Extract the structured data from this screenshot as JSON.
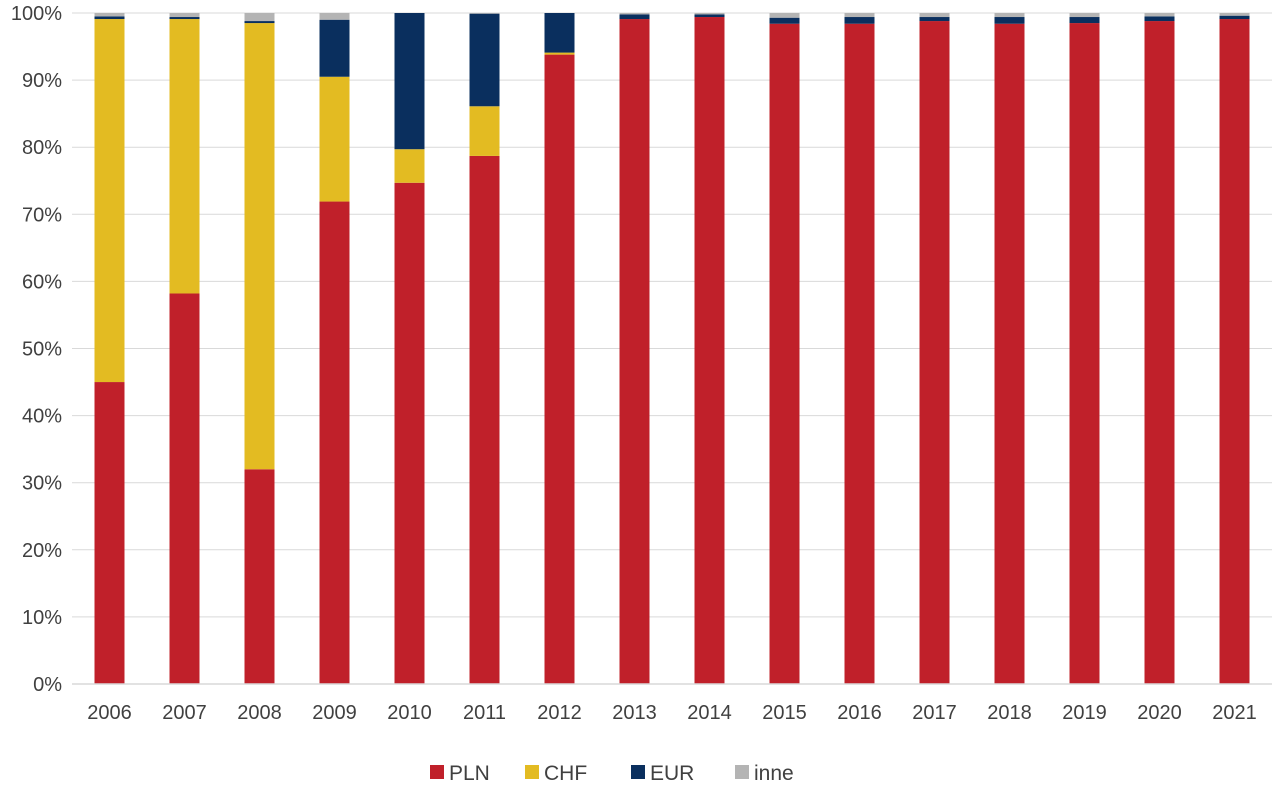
{
  "chart_data": {
    "type": "bar",
    "stacked": true,
    "title": "",
    "xlabel": "",
    "ylabel": "",
    "ylim": [
      0,
      100
    ],
    "y_ticks": [
      "0%",
      "10%",
      "20%",
      "30%",
      "40%",
      "50%",
      "60%",
      "70%",
      "80%",
      "90%",
      "100%"
    ],
    "grid": true,
    "legend_position": "bottom",
    "categories": [
      "2006",
      "2007",
      "2008",
      "2009",
      "2010",
      "2011",
      "2012",
      "2013",
      "2014",
      "2015",
      "2016",
      "2017",
      "2018",
      "2019",
      "2020",
      "2021"
    ],
    "series": [
      {
        "name": "PLN",
        "color": "#c0202a",
        "values": [
          45.0,
          58.2,
          32.0,
          71.9,
          74.7,
          78.7,
          93.8,
          99.1,
          99.4,
          98.4,
          98.4,
          98.8,
          98.4,
          98.5,
          98.8,
          99.1
        ]
      },
      {
        "name": "CHF",
        "color": "#e3bb22",
        "values": [
          54.1,
          40.9,
          66.5,
          18.6,
          5.0,
          7.4,
          0.3,
          0.0,
          0.0,
          0.0,
          0.0,
          0.0,
          0.0,
          0.0,
          0.0,
          0.0
        ]
      },
      {
        "name": "EUR",
        "color": "#0a2f5e",
        "values": [
          0.4,
          0.3,
          0.3,
          8.5,
          20.3,
          13.8,
          5.9,
          0.7,
          0.4,
          0.9,
          1.0,
          0.6,
          1.0,
          0.9,
          0.7,
          0.5
        ]
      },
      {
        "name": "inne",
        "color": "#b4b4b4",
        "values": [
          0.5,
          0.6,
          1.2,
          1.0,
          0.0,
          0.1,
          0.0,
          0.2,
          0.2,
          0.7,
          0.6,
          0.6,
          0.6,
          0.6,
          0.5,
          0.4
        ]
      }
    ]
  }
}
